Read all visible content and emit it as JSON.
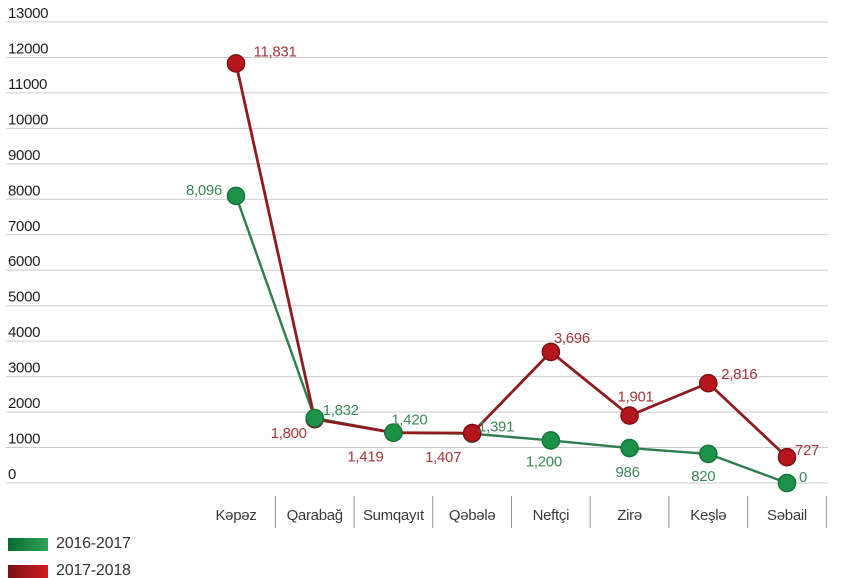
{
  "chart_data": {
    "type": "line",
    "title": "",
    "categories": [
      "Kəpəz",
      "Qarabağ",
      "Sumqayıt",
      "Qəbələ",
      "Neftçi",
      "Zirə",
      "Keşlə",
      "Səbail"
    ],
    "series": [
      {
        "name": "2016-2017",
        "values": [
          8096,
          1832,
          1420,
          1391,
          1200,
          986,
          820,
          0
        ],
        "line_color": "#2e7d4e",
        "point_color": "#1c9147",
        "point_edge_color": "#0f7536",
        "label_color": "#3e8760",
        "label_offsets": [
          [
            -32,
            -6
          ],
          [
            26,
            -8
          ],
          [
            16,
            -13
          ],
          [
            24,
            -7
          ],
          [
            -7,
            21
          ],
          [
            -2,
            24
          ],
          [
            -5,
            22
          ],
          [
            16,
            -6
          ]
        ]
      },
      {
        "name": "2017-2018",
        "values": [
          11831,
          1800,
          1419,
          1407,
          3696,
          1901,
          2816,
          727
        ],
        "line_color": "#8e1b1e",
        "point_color": "#b5161d",
        "point_edge_color": "#7c0f13",
        "label_color": "#a0373c",
        "label_offsets": [
          [
            39,
            -12
          ],
          [
            -26,
            14
          ],
          [
            -28,
            24
          ],
          [
            -29,
            24
          ],
          [
            21,
            -14
          ],
          [
            6,
            -19
          ],
          [
            31,
            -9
          ],
          [
            20,
            -7
          ]
        ]
      }
    ],
    "ylim": [
      0,
      13000
    ],
    "ytick_step": 1000,
    "ytick_labels": [
      "0",
      "1000",
      "2000",
      "3000",
      "4000",
      "5000",
      "6000",
      "7000",
      "8000",
      "9000",
      "10000",
      "11000",
      "12000",
      "13000"
    ],
    "grid": "horizontal-only",
    "gridline_color": "#cbcbcb",
    "axis_text_color": "#1f1f1f",
    "category_text_color": "#3a3a3a",
    "separator_color": "#909090",
    "legend_position": "bottom-left",
    "legend": {
      "items": [
        {
          "label": "2016-2017",
          "swatch_gradient": [
            "#0a6b31",
            "#2fa456"
          ]
        },
        {
          "label": "2017-2018",
          "swatch_gradient": [
            "#7a1015",
            "#d31c24"
          ]
        }
      ]
    }
  }
}
